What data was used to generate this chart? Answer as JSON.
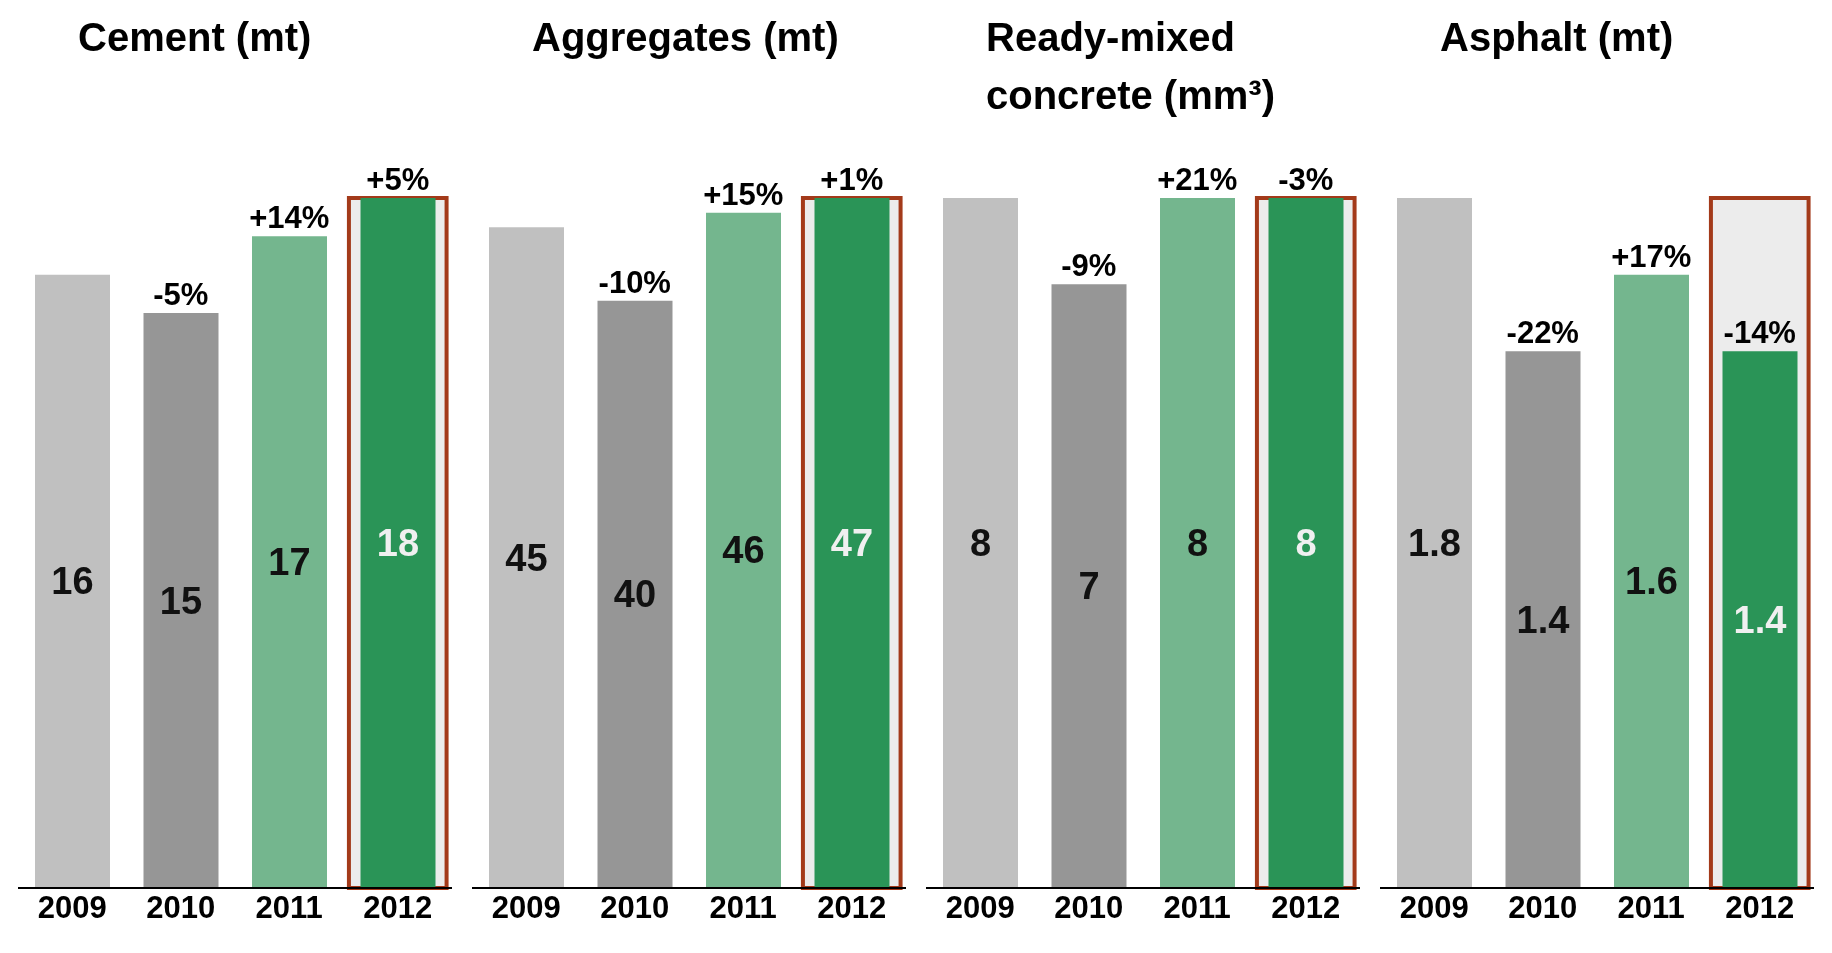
{
  "chart_data": [
    {
      "type": "bar",
      "title": "Cement (mt)",
      "categories": [
        "2009",
        "2010",
        "2011",
        "2012"
      ],
      "values": [
        16,
        15,
        17,
        18
      ],
      "colors": [
        "#c0c0c0",
        "#969696",
        "#74b68e",
        "#2a9457"
      ],
      "data_labels": true,
      "tick_labels": "x",
      "annotations": [
        {
          "text": "-5%",
          "x": "2010",
          "y": 15
        },
        {
          "text": "+14%",
          "x": "2011",
          "y": 17
        },
        {
          "text": "+5%",
          "x": "2012",
          "y": 18
        }
      ],
      "bands": [
        {
          "axis": "x",
          "from": "2012",
          "to": "2012",
          "color": "#a33a1a"
        }
      ]
    },
    {
      "type": "bar",
      "title": "Aggregates (mt)",
      "categories": [
        "2009",
        "2010",
        "2011",
        "2012"
      ],
      "values": [
        45,
        40,
        46,
        47
      ],
      "colors": [
        "#c0c0c0",
        "#969696",
        "#74b68e",
        "#2a9457"
      ],
      "data_labels": true,
      "tick_labels": "x",
      "annotations": [
        {
          "text": "-10%",
          "x": "2010",
          "y": 40
        },
        {
          "text": "+15%",
          "x": "2011",
          "y": 46
        },
        {
          "text": "+1%",
          "x": "2012",
          "y": 47
        }
      ],
      "bands": [
        {
          "axis": "x",
          "from": "2012",
          "to": "2012",
          "color": "#a33a1a"
        }
      ]
    },
    {
      "type": "bar",
      "title": "Ready-mixed concrete (mm³)",
      "categories": [
        "2009",
        "2010",
        "2011",
        "2012"
      ],
      "values": [
        8,
        7,
        8,
        8
      ],
      "colors": [
        "#c0c0c0",
        "#969696",
        "#74b68e",
        "#2a9457"
      ],
      "data_labels": true,
      "tick_labels": "x",
      "annotations": [
        {
          "text": "-9%",
          "x": "2010",
          "y": 7
        },
        {
          "text": "+21%",
          "x": "2011",
          "y": 8
        },
        {
          "text": "-3%",
          "x": "2012",
          "y": 8
        }
      ],
      "bands": [
        {
          "axis": "x",
          "from": "2012",
          "to": "2012",
          "color": "#a33a1a"
        }
      ]
    },
    {
      "type": "bar",
      "title": "Asphalt (mt)",
      "categories": [
        "2009",
        "2010",
        "2011",
        "2012"
      ],
      "values": [
        1.8,
        1.4,
        1.6,
        1.4
      ],
      "colors": [
        "#c0c0c0",
        "#969696",
        "#74b68e",
        "#2a9457"
      ],
      "data_labels": true,
      "tick_labels": "x",
      "annotations": [
        {
          "text": "-22%",
          "x": "2010",
          "y": 1.4
        },
        {
          "text": "+17%",
          "x": "2011",
          "y": 1.6
        },
        {
          "text": "-14%",
          "x": "2012",
          "y": 1.4
        }
      ],
      "bands": [
        {
          "axis": "x",
          "from": "2012",
          "to": "2012",
          "color": "#a33a1a"
        }
      ]
    }
  ]
}
